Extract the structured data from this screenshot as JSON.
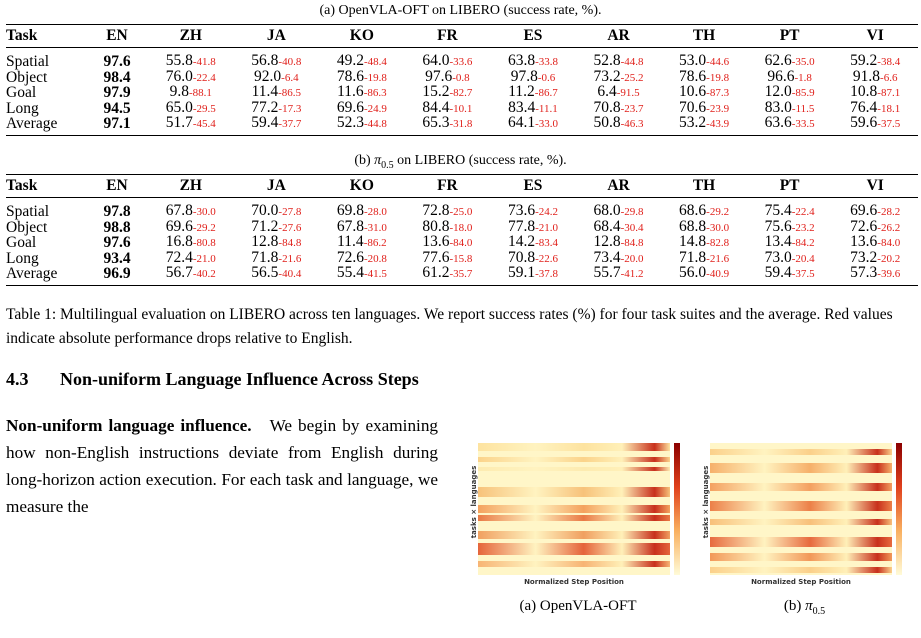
{
  "tables": [
    {
      "caption": {
        "label": "(a) OpenVLA-OFT on LIBERO (success rate, %)."
      },
      "header": [
        "Task",
        "EN",
        "ZH",
        "JA",
        "KO",
        "FR",
        "ES",
        "AR",
        "TH",
        "PT",
        "VI"
      ],
      "rows": [
        {
          "task": "Spatial",
          "en": "97.6",
          "cells": [
            [
              "55.8",
              "-41.8"
            ],
            [
              "56.8",
              "-40.8"
            ],
            [
              "49.2",
              "-48.4"
            ],
            [
              "64.0",
              "-33.6"
            ],
            [
              "63.8",
              "-33.8"
            ],
            [
              "52.8",
              "-44.8"
            ],
            [
              "53.0",
              "-44.6"
            ],
            [
              "62.6",
              "-35.0"
            ],
            [
              "59.2",
              "-38.4"
            ]
          ]
        },
        {
          "task": "Object",
          "en": "98.4",
          "cells": [
            [
              "76.0",
              "-22.4"
            ],
            [
              "92.0",
              "-6.4"
            ],
            [
              "78.6",
              "-19.8"
            ],
            [
              "97.6",
              "-0.8"
            ],
            [
              "97.8",
              "-0.6"
            ],
            [
              "73.2",
              "-25.2"
            ],
            [
              "78.6",
              "-19.8"
            ],
            [
              "96.6",
              "-1.8"
            ],
            [
              "91.8",
              "-6.6"
            ]
          ]
        },
        {
          "task": "Goal",
          "en": "97.9",
          "cells": [
            [
              "9.8",
              "-88.1"
            ],
            [
              "11.4",
              "-86.5"
            ],
            [
              "11.6",
              "-86.3"
            ],
            [
              "15.2",
              "-82.7"
            ],
            [
              "11.2",
              "-86.7"
            ],
            [
              "6.4",
              "-91.5"
            ],
            [
              "10.6",
              "-87.3"
            ],
            [
              "12.0",
              "-85.9"
            ],
            [
              "10.8",
              "-87.1"
            ]
          ]
        },
        {
          "task": "Long",
          "en": "94.5",
          "cells": [
            [
              "65.0",
              "-29.5"
            ],
            [
              "77.2",
              "-17.3"
            ],
            [
              "69.6",
              "-24.9"
            ],
            [
              "84.4",
              "-10.1"
            ],
            [
              "83.4",
              "-11.1"
            ],
            [
              "70.8",
              "-23.7"
            ],
            [
              "70.6",
              "-23.9"
            ],
            [
              "83.0",
              "-11.5"
            ],
            [
              "76.4",
              "-18.1"
            ]
          ]
        },
        {
          "task": "Average",
          "en": "97.1",
          "cells": [
            [
              "51.7",
              "-45.4"
            ],
            [
              "59.4",
              "-37.7"
            ],
            [
              "52.3",
              "-44.8"
            ],
            [
              "65.3",
              "-31.8"
            ],
            [
              "64.1",
              "-33.0"
            ],
            [
              "50.8",
              "-46.3"
            ],
            [
              "53.2",
              "-43.9"
            ],
            [
              "63.6",
              "-33.5"
            ],
            [
              "59.6",
              "-37.5"
            ]
          ]
        }
      ]
    },
    {
      "caption": {
        "label": "(b)",
        "symbol": "π",
        "subscript": "0.5",
        "text": "on LIBERO (success rate, %)."
      },
      "header": [
        "Task",
        "EN",
        "ZH",
        "JA",
        "KO",
        "FR",
        "ES",
        "AR",
        "TH",
        "PT",
        "VI"
      ],
      "rows": [
        {
          "task": "Spatial",
          "en": "97.8",
          "cells": [
            [
              "67.8",
              "-30.0"
            ],
            [
              "70.0",
              "-27.8"
            ],
            [
              "69.8",
              "-28.0"
            ],
            [
              "72.8",
              "-25.0"
            ],
            [
              "73.6",
              "-24.2"
            ],
            [
              "68.0",
              "-29.8"
            ],
            [
              "68.6",
              "-29.2"
            ],
            [
              "75.4",
              "-22.4"
            ],
            [
              "69.6",
              "-28.2"
            ]
          ]
        },
        {
          "task": "Object",
          "en": "98.8",
          "cells": [
            [
              "69.6",
              "-29.2"
            ],
            [
              "71.2",
              "-27.6"
            ],
            [
              "67.8",
              "-31.0"
            ],
            [
              "80.8",
              "-18.0"
            ],
            [
              "77.8",
              "-21.0"
            ],
            [
              "68.4",
              "-30.4"
            ],
            [
              "68.8",
              "-30.0"
            ],
            [
              "75.6",
              "-23.2"
            ],
            [
              "72.6",
              "-26.2"
            ]
          ]
        },
        {
          "task": "Goal",
          "en": "97.6",
          "cells": [
            [
              "16.8",
              "-80.8"
            ],
            [
              "12.8",
              "-84.8"
            ],
            [
              "11.4",
              "-86.2"
            ],
            [
              "13.6",
              "-84.0"
            ],
            [
              "14.2",
              "-83.4"
            ],
            [
              "12.8",
              "-84.8"
            ],
            [
              "14.8",
              "-82.8"
            ],
            [
              "13.4",
              "-84.2"
            ],
            [
              "13.6",
              "-84.0"
            ]
          ]
        },
        {
          "task": "Long",
          "en": "93.4",
          "cells": [
            [
              "72.4",
              "-21.0"
            ],
            [
              "71.8",
              "-21.6"
            ],
            [
              "72.6",
              "-20.8"
            ],
            [
              "77.6",
              "-15.8"
            ],
            [
              "70.8",
              "-22.6"
            ],
            [
              "73.4",
              "-20.0"
            ],
            [
              "71.8",
              "-21.6"
            ],
            [
              "73.0",
              "-20.4"
            ],
            [
              "73.2",
              "-20.2"
            ]
          ]
        },
        {
          "task": "Average",
          "en": "96.9",
          "cells": [
            [
              "56.7",
              "-40.2"
            ],
            [
              "56.5",
              "-40.4"
            ],
            [
              "55.4",
              "-41.5"
            ],
            [
              "61.2",
              "-35.7"
            ],
            [
              "59.1",
              "-37.8"
            ],
            [
              "55.7",
              "-41.2"
            ],
            [
              "56.0",
              "-40.9"
            ],
            [
              "59.4",
              "-37.5"
            ],
            [
              "57.3",
              "-39.6"
            ]
          ]
        }
      ]
    }
  ],
  "table_caption": "Table 1: Multilingual evaluation on LIBERO across ten languages. We report success rates (%) for four task suites and the average. Red values indicate absolute performance drops relative to English.",
  "section": {
    "number": "4.3",
    "title": "Non-uniform Language Influence Across Steps"
  },
  "paragraph": {
    "lead": "Non-uniform language influence.",
    "text": "We begin by examining how non-English instructions deviate from English during long-horizon action execution. For each task and language, we measure the"
  },
  "figures": [
    {
      "ylabel": "tasks × languages",
      "xlabel": "Normalized Step Position",
      "caption": "(a) OpenVLA-OFT"
    },
    {
      "ylabel": "tasks × languages",
      "xlabel": "Normalized Step Position",
      "caption": {
        "label": "(b)",
        "symbol": "π",
        "subscript": "0.5"
      }
    }
  ]
}
